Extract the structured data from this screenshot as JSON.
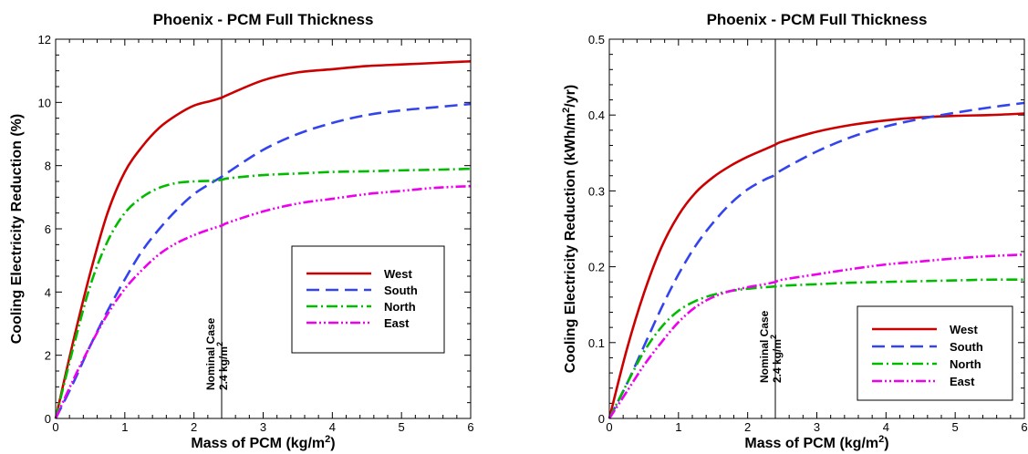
{
  "chart_data": [
    {
      "type": "line",
      "title": "Phoenix - PCM Full Thickness",
      "xlabel": "Mass of PCM (kg/m",
      "xlabel_sup": "2",
      "xlabel_tail": ")",
      "ylabel": "Cooling Electricity Reduction (%)",
      "xlim": [
        0,
        6
      ],
      "ylim": [
        0,
        12
      ],
      "xticks": [
        "0",
        "1",
        "2",
        "3",
        "4",
        "5",
        "6"
      ],
      "yticks": [
        "0",
        "2",
        "4",
        "6",
        "8",
        "10",
        "12"
      ],
      "legend_position": "middle-right",
      "vline": {
        "x": 2.4,
        "label1": "Nominal Case",
        "label2": "2.4 kg/m",
        "label2_sup": "2"
      },
      "series": [
        {
          "name": "West",
          "color": "#cc0000",
          "dash": "solid",
          "x": [
            0,
            0.25,
            0.5,
            0.75,
            1,
            1.25,
            1.5,
            1.75,
            2,
            2.25,
            2.4,
            2.5,
            3,
            3.5,
            4,
            4.5,
            5,
            5.5,
            6
          ],
          "y": [
            0,
            2.4,
            4.6,
            6.5,
            7.8,
            8.6,
            9.2,
            9.6,
            9.9,
            10.05,
            10.15,
            10.25,
            10.7,
            10.95,
            11.05,
            11.15,
            11.2,
            11.25,
            11.3
          ]
        },
        {
          "name": "South",
          "color": "#3344ee",
          "dash": "long-dash",
          "x": [
            0,
            0.25,
            0.5,
            0.75,
            1,
            1.25,
            1.5,
            1.75,
            2,
            2.25,
            2.4,
            2.5,
            3,
            3.5,
            4,
            4.5,
            5,
            5.5,
            6
          ],
          "y": [
            0,
            1.1,
            2.3,
            3.4,
            4.4,
            5.3,
            6.0,
            6.6,
            7.1,
            7.45,
            7.65,
            7.8,
            8.5,
            9.0,
            9.35,
            9.6,
            9.75,
            9.85,
            9.95
          ]
        },
        {
          "name": "North",
          "color": "#00bb00",
          "dash": "dash-dot",
          "x": [
            0,
            0.25,
            0.5,
            0.75,
            1,
            1.25,
            1.5,
            1.75,
            2,
            2.25,
            2.4,
            2.5,
            3,
            3.5,
            4,
            4.5,
            5,
            5.5,
            6
          ],
          "y": [
            0,
            2.2,
            4.2,
            5.6,
            6.5,
            7.0,
            7.3,
            7.45,
            7.5,
            7.52,
            7.55,
            7.6,
            7.7,
            7.75,
            7.8,
            7.82,
            7.85,
            7.87,
            7.9
          ]
        },
        {
          "name": "East",
          "color": "#ee00ee",
          "dash": "dash-dot-dot",
          "x": [
            0,
            0.25,
            0.5,
            0.75,
            1,
            1.25,
            1.5,
            1.75,
            2,
            2.25,
            2.4,
            2.5,
            3,
            3.5,
            4,
            4.5,
            5,
            5.5,
            6
          ],
          "y": [
            0,
            1.2,
            2.3,
            3.3,
            4.1,
            4.7,
            5.2,
            5.55,
            5.8,
            6.0,
            6.1,
            6.2,
            6.55,
            6.8,
            6.95,
            7.1,
            7.2,
            7.3,
            7.35
          ]
        }
      ]
    },
    {
      "type": "line",
      "title": "Phoenix - PCM Full Thickness",
      "xlabel": "Mass of PCM (kg/m",
      "xlabel_sup": "2",
      "xlabel_tail": ")",
      "ylabel": "Cooling Electricity Reduction (kWh/m",
      "ylabel_sup": "2",
      "ylabel_tail": "/yr)",
      "xlim": [
        0,
        6
      ],
      "ylim": [
        0,
        0.5
      ],
      "xticks": [
        "0",
        "1",
        "2",
        "3",
        "4",
        "5",
        "6"
      ],
      "yticks": [
        "0",
        "0.1",
        "0.2",
        "0.3",
        "0.4",
        "0.5"
      ],
      "legend_position": "bottom-right",
      "vline": {
        "x": 2.4,
        "label1": "Nominal Case",
        "label2": "2.4 kg/m",
        "label2_sup": "2"
      },
      "series": [
        {
          "name": "West",
          "color": "#cc0000",
          "dash": "solid",
          "x": [
            0,
            0.25,
            0.5,
            0.75,
            1,
            1.25,
            1.5,
            1.75,
            2,
            2.25,
            2.4,
            2.5,
            3,
            3.5,
            4,
            4.5,
            5,
            5.5,
            6
          ],
          "y": [
            0,
            0.09,
            0.165,
            0.225,
            0.268,
            0.298,
            0.318,
            0.333,
            0.345,
            0.355,
            0.361,
            0.365,
            0.378,
            0.387,
            0.393,
            0.397,
            0.399,
            0.4,
            0.402
          ]
        },
        {
          "name": "South",
          "color": "#3344ee",
          "dash": "long-dash",
          "x": [
            0,
            0.25,
            0.5,
            0.75,
            1,
            1.25,
            1.5,
            1.75,
            2,
            2.25,
            2.4,
            2.5,
            3,
            3.5,
            4,
            4.5,
            5,
            5.5,
            6
          ],
          "y": [
            0,
            0.045,
            0.095,
            0.145,
            0.19,
            0.228,
            0.258,
            0.283,
            0.302,
            0.315,
            0.321,
            0.328,
            0.352,
            0.371,
            0.385,
            0.395,
            0.403,
            0.41,
            0.416
          ]
        },
        {
          "name": "North",
          "color": "#00bb00",
          "dash": "dash-dot",
          "x": [
            0,
            0.25,
            0.5,
            0.75,
            1,
            1.25,
            1.5,
            1.75,
            2,
            2.25,
            2.4,
            2.5,
            3,
            3.5,
            4,
            4.5,
            5,
            5.5,
            6
          ],
          "y": [
            0,
            0.045,
            0.088,
            0.12,
            0.142,
            0.155,
            0.163,
            0.168,
            0.171,
            0.173,
            0.174,
            0.175,
            0.177,
            0.179,
            0.18,
            0.181,
            0.182,
            0.183,
            0.183
          ]
        },
        {
          "name": "East",
          "color": "#ee00ee",
          "dash": "dash-dot-dot",
          "x": [
            0,
            0.25,
            0.5,
            0.75,
            1,
            1.25,
            1.5,
            1.75,
            2,
            2.25,
            2.4,
            2.5,
            3,
            3.5,
            4,
            4.5,
            5,
            5.5,
            6
          ],
          "y": [
            0,
            0.035,
            0.07,
            0.1,
            0.127,
            0.147,
            0.16,
            0.168,
            0.173,
            0.177,
            0.18,
            0.183,
            0.19,
            0.197,
            0.203,
            0.207,
            0.211,
            0.214,
            0.216
          ]
        }
      ]
    }
  ]
}
